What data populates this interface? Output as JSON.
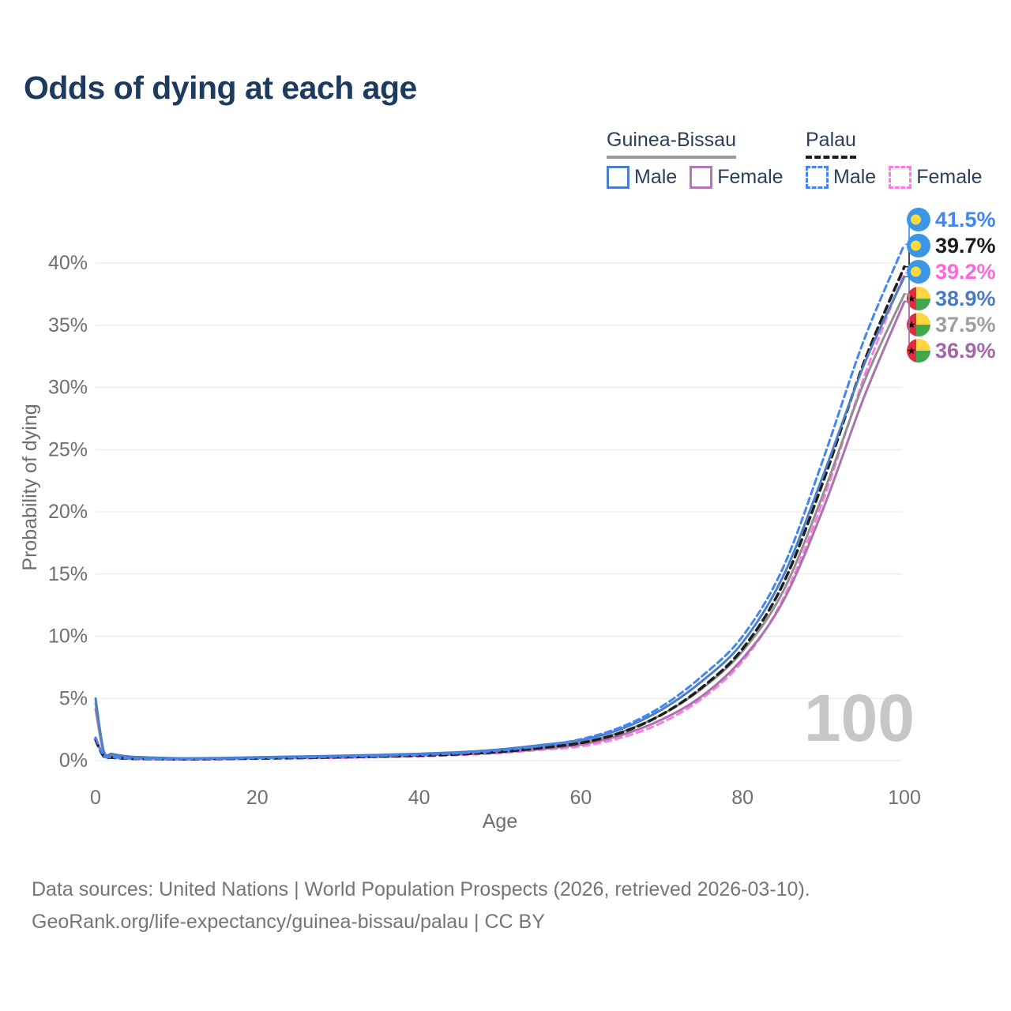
{
  "title": "Odds of dying at each age",
  "legend": {
    "groups": [
      {
        "name": "Guinea-Bissau",
        "line_style": "solid",
        "underline_color": "#9a9a9a",
        "items": [
          {
            "label": "Male",
            "color": "#4d7fc7"
          },
          {
            "label": "Female",
            "color": "#b476b4"
          }
        ]
      },
      {
        "name": "Palau",
        "line_style": "dashed",
        "underline_color": "#1c1c1c",
        "items": [
          {
            "label": "Male",
            "color": "#4285f4"
          },
          {
            "label": "Female",
            "color": "#ff7ae1"
          }
        ]
      }
    ]
  },
  "watermark": "100",
  "footer": {
    "line1": "Data sources: United Nations | World Population Prospects (2026, retrieved 2026-03-10).",
    "line2": "GeoRank.org/life-expectancy/guinea-bissau/palau | CC BY"
  },
  "chart_data": {
    "type": "line",
    "title": "Odds of dying at each age",
    "xlabel": "Age",
    "ylabel": "Probability of dying",
    "xlim": [
      0,
      100
    ],
    "ylim": [
      0,
      44
    ],
    "xticks": [
      0,
      20,
      40,
      60,
      80,
      100
    ],
    "yticks": [
      0,
      5,
      10,
      15,
      20,
      25,
      30,
      35,
      40
    ],
    "ytick_suffix": "%",
    "grid": "horizontal",
    "gridline_color": "#ebebeb",
    "tick_color": "#6f6f6f",
    "ages": [
      0,
      1,
      2,
      3,
      4,
      5,
      10,
      15,
      20,
      25,
      30,
      35,
      40,
      45,
      50,
      55,
      60,
      65,
      70,
      75,
      80,
      85,
      90,
      95,
      100
    ],
    "series": [
      {
        "id": "palau-female",
        "name": "Palau Female",
        "flag": "palau",
        "color": "#ff7ae1",
        "label_color": "#ff66dd",
        "dash": "8 6",
        "width": 3,
        "values": [
          1.55,
          0.33,
          0.23,
          0.18,
          0.15,
          0.13,
          0.1,
          0.12,
          0.15,
          0.18,
          0.23,
          0.28,
          0.35,
          0.45,
          0.61,
          0.87,
          1.15,
          1.85,
          3.05,
          5.0,
          8.0,
          13.0,
          21.0,
          30.8,
          39.2
        ],
        "end_label": "39.2%"
      },
      {
        "id": "guinea-bissau-female",
        "name": "Guinea-Bissau Female",
        "flag": "guinea-bissau",
        "color": "#a873ae",
        "label_color": "#a565a8",
        "dash": "",
        "width": 3,
        "values": [
          4.15,
          0.66,
          0.44,
          0.34,
          0.28,
          0.24,
          0.15,
          0.17,
          0.21,
          0.25,
          0.3,
          0.35,
          0.42,
          0.52,
          0.67,
          0.93,
          1.3,
          2.05,
          3.3,
          5.2,
          8.2,
          12.8,
          20.3,
          29.2,
          36.9
        ],
        "end_label": "36.9%"
      },
      {
        "id": "guinea-bissau-total",
        "name": "Guinea-Bissau",
        "flag": "guinea-bissau",
        "color": "#909090",
        "label_color": "#9e9e9e",
        "dash": "",
        "width": 3,
        "values": [
          4.6,
          0.73,
          0.49,
          0.38,
          0.31,
          0.27,
          0.17,
          0.19,
          0.24,
          0.29,
          0.34,
          0.4,
          0.48,
          0.59,
          0.78,
          1.08,
          1.47,
          2.3,
          3.7,
          5.8,
          8.8,
          13.6,
          21.5,
          30.4,
          37.5
        ],
        "end_label": "37.5%"
      },
      {
        "id": "palau-total",
        "name": "Palau",
        "flag": "palau",
        "color": "#1e1e1e",
        "label_color": "#1c1c1c",
        "dash": "9 6",
        "width": 3.5,
        "values": [
          1.7,
          0.36,
          0.25,
          0.2,
          0.17,
          0.15,
          0.12,
          0.14,
          0.18,
          0.22,
          0.27,
          0.33,
          0.41,
          0.52,
          0.71,
          1.02,
          1.42,
          2.25,
          3.7,
          5.9,
          9.0,
          14.2,
          22.5,
          32.0,
          39.7
        ],
        "end_label": "39.7%"
      },
      {
        "id": "guinea-bissau-male",
        "name": "Guinea-Bissau Male",
        "flag": "guinea-bissau",
        "color": "#4d7fc7",
        "label_color": "#4a7cc1",
        "dash": "",
        "width": 3,
        "values": [
          5.0,
          0.8,
          0.55,
          0.42,
          0.34,
          0.29,
          0.19,
          0.21,
          0.27,
          0.33,
          0.39,
          0.46,
          0.55,
          0.68,
          0.9,
          1.25,
          1.65,
          2.55,
          4.1,
          6.4,
          9.5,
          14.8,
          23.0,
          31.8,
          38.9
        ],
        "end_label": "38.9%"
      },
      {
        "id": "palau-male",
        "name": "Palau Male",
        "flag": "palau",
        "color": "#4285f4",
        "label_color": "#4285f4",
        "dash": "8 5",
        "width": 3,
        "values": [
          1.85,
          0.4,
          0.28,
          0.22,
          0.18,
          0.16,
          0.13,
          0.16,
          0.21,
          0.26,
          0.31,
          0.38,
          0.47,
          0.6,
          0.82,
          1.18,
          1.72,
          2.7,
          4.35,
          6.8,
          10.0,
          15.5,
          24.3,
          33.8,
          41.5
        ],
        "end_label": "41.5%"
      }
    ],
    "legend_position": "top-right",
    "flag_colors": {
      "palau_blue": "#3b97e6",
      "palau_yellow": "#ffd83b",
      "gb_red": "#dc2e3e",
      "gb_yellow": "#ffd542",
      "gb_green": "#44a64c"
    }
  }
}
